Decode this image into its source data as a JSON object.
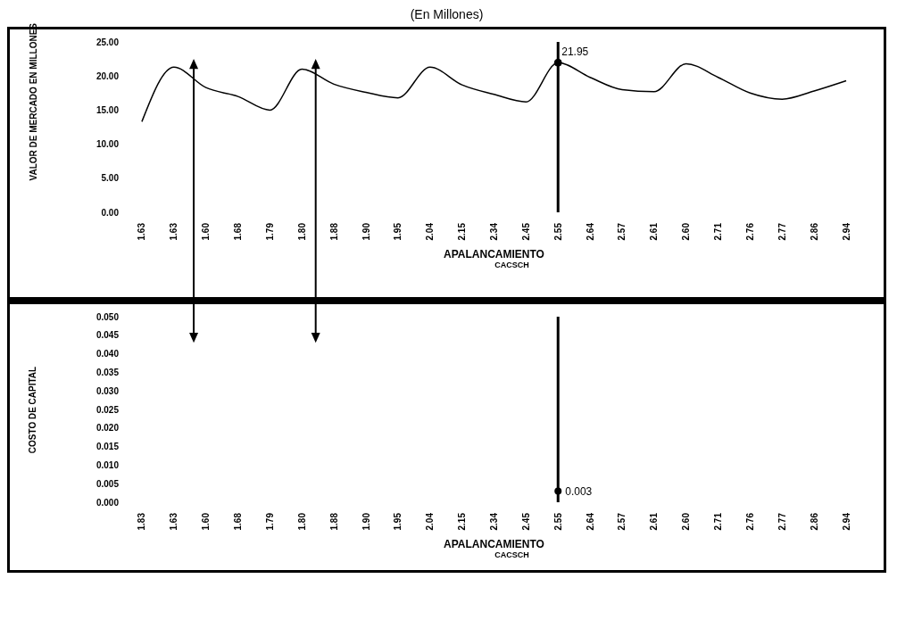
{
  "chart_data": [
    {
      "type": "line",
      "title": "(En Millones)",
      "ylabel": "VALOR DE MERCADO EN MILLONES",
      "xlabel": "APALANCAMIENTO",
      "annotations": [
        "CACSCH"
      ],
      "categories": [
        "1.63",
        "1.63",
        "1.60",
        "1.68",
        "1.79",
        "1.80",
        "1.88",
        "1.90",
        "1.95",
        "2.04",
        "2.15",
        "2.34",
        "2.45",
        "2.55",
        "2.64",
        "2.57",
        "2.61",
        "2.60",
        "2.71",
        "2.76",
        "2.77",
        "2.86",
        "2.94"
      ],
      "values": [
        13.3,
        21.3,
        18.3,
        17.0,
        15.0,
        21.0,
        18.8,
        17.6,
        16.8,
        21.3,
        18.7,
        17.3,
        16.2,
        21.95,
        19.8,
        18.0,
        17.7,
        21.8,
        19.8,
        17.5,
        16.6,
        17.8,
        19.3
      ],
      "value_labels": [
        null,
        null,
        null,
        null,
        null,
        null,
        null,
        null,
        null,
        null,
        null,
        null,
        null,
        "21.95",
        null,
        null,
        null,
        null,
        null,
        null,
        null,
        null,
        null
      ],
      "color": "#000000",
      "ylim": [
        0,
        25
      ],
      "yticks": [
        {
          "value": 0,
          "label": "0.00"
        },
        {
          "value": 5,
          "label": "5.00"
        },
        {
          "value": 10,
          "label": "10.00"
        },
        {
          "value": 15,
          "label": "15.00"
        },
        {
          "value": 20,
          "label": "20.00"
        },
        {
          "value": 25,
          "label": "25.00"
        }
      ],
      "ref_lines": [
        {
          "axis": "x",
          "value": "2.55",
          "color": "#000000"
        }
      ],
      "grid": false
    },
    {
      "type": "scatter",
      "ylabel": "COSTO DE CAPITAL",
      "xlabel": "APALANCAMIENTO",
      "annotations": [
        "CACSCH"
      ],
      "categories": [
        "1.83",
        "1.63",
        "1.60",
        "1.68",
        "1.79",
        "1.80",
        "1.88",
        "1.90",
        "1.95",
        "2.04",
        "2.15",
        "2.34",
        "2.45",
        "2.55",
        "2.64",
        "2.57",
        "2.61",
        "2.60",
        "2.71",
        "2.76",
        "2.77",
        "2.86",
        "2.94"
      ],
      "values": [
        null,
        null,
        null,
        null,
        null,
        null,
        null,
        null,
        null,
        null,
        null,
        null,
        null,
        0.003,
        null,
        null,
        null,
        null,
        null,
        null,
        null,
        null,
        null
      ],
      "data_labels": true,
      "color": "#000000",
      "ylim": [
        0,
        0.05
      ],
      "yticks": [
        {
          "value": 0,
          "label": "0.000"
        },
        {
          "value": 0.005,
          "label": "0.005"
        },
        {
          "value": 0.01,
          "label": "0.010"
        },
        {
          "value": 0.015,
          "label": "0.015"
        },
        {
          "value": 0.02,
          "label": "0.020"
        },
        {
          "value": 0.025,
          "label": "0.025"
        },
        {
          "value": 0.03,
          "label": "0.030"
        },
        {
          "value": 0.035,
          "label": "0.035"
        },
        {
          "value": 0.04,
          "label": "0.040"
        },
        {
          "value": 0.045,
          "label": "0.045"
        },
        {
          "value": 0.05,
          "label": "0.050"
        }
      ],
      "ref_lines": [
        {
          "axis": "x",
          "value": "2.55",
          "color": "#000000"
        }
      ],
      "grid": false
    }
  ]
}
